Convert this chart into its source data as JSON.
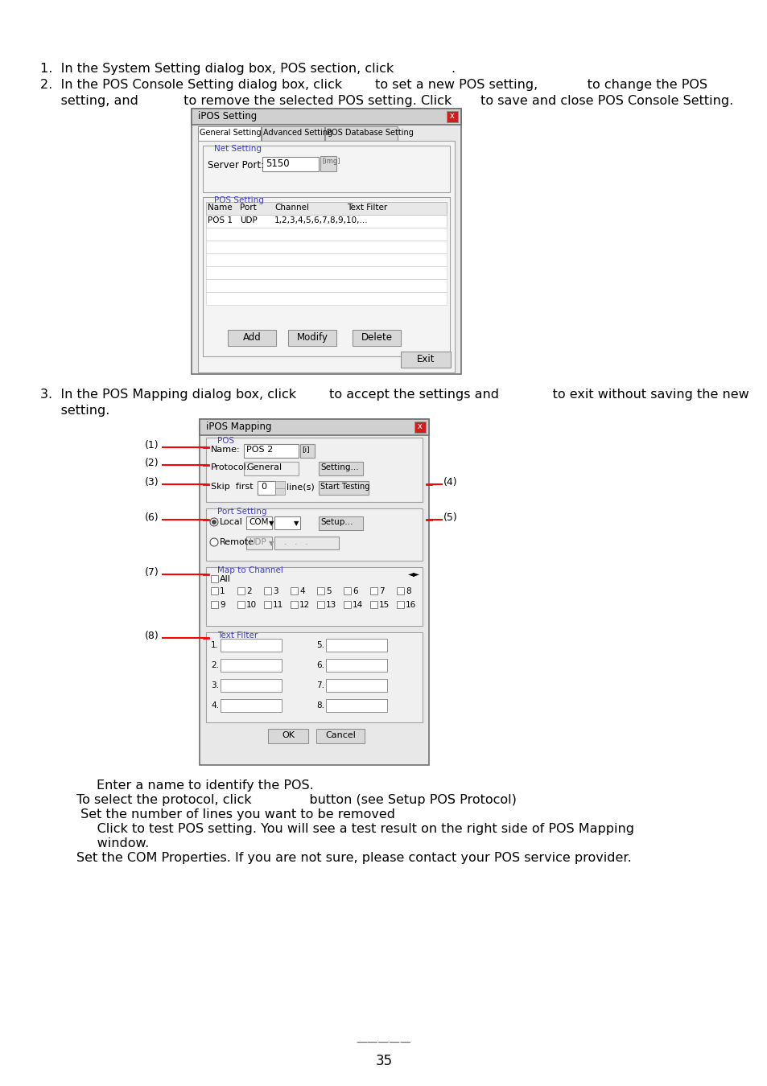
{
  "bg_color": "#ffffff",
  "text_color": "#000000",
  "blue_color": "#4040c0",
  "red_color": "#cc0000",
  "gray_title": "#c8c8c8",
  "gray_bg": "#f0f0f0",
  "gray_btn": "#d8d8d8",
  "line1": "1.  In the System Setting dialog box, POS section, click              .",
  "line2": "2.  In the POS Console Setting dialog box, click        to set a new POS setting,            to change the POS",
  "line3": "     setting, and           to remove the selected POS setting. Click       to save and close POS Console Setting.",
  "line4": "3.  In the POS Mapping dialog box, click        to accept the settings and             to exit without saving the new",
  "line5": "     setting.",
  "desc1": "Enter a name to identify the POS.",
  "desc2": "To select the protocol, click              button (see Setup POS Protocol)",
  "desc3": " Set the number of lines you want to be removed",
  "desc4": "     Click to test POS setting. You will see a test result on the right side of POS Mapping",
  "desc5": "     window.",
  "desc6": "Set the COM Properties. If you are not sure, please contact your POS service provider.",
  "page_number": "35"
}
